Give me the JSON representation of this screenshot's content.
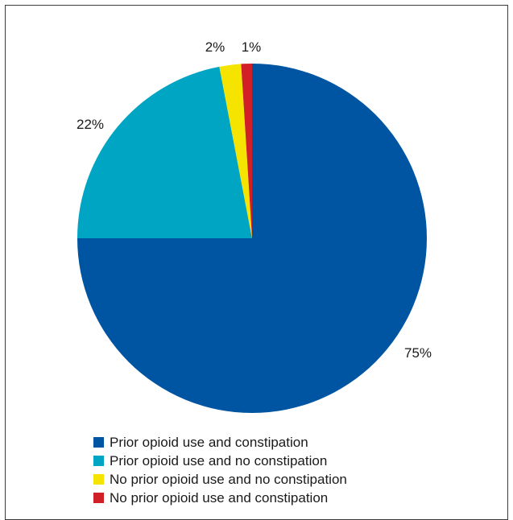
{
  "chart_data": {
    "type": "pie",
    "title": "",
    "categories": [
      "Prior opioid use and constipation",
      "Prior opioid use and no constipation",
      "No prior opioid use and no constipation",
      "No prior opioid use and constipation"
    ],
    "values": [
      75,
      22,
      2,
      1
    ],
    "labels": [
      "75%",
      "22%",
      "2%",
      "1%"
    ],
    "colors": [
      "#0055a2",
      "#00a5c4",
      "#f5e400",
      "#d01f26"
    ],
    "start_angle_deg": 0,
    "direction": "clockwise",
    "legend_position": "bottom"
  }
}
